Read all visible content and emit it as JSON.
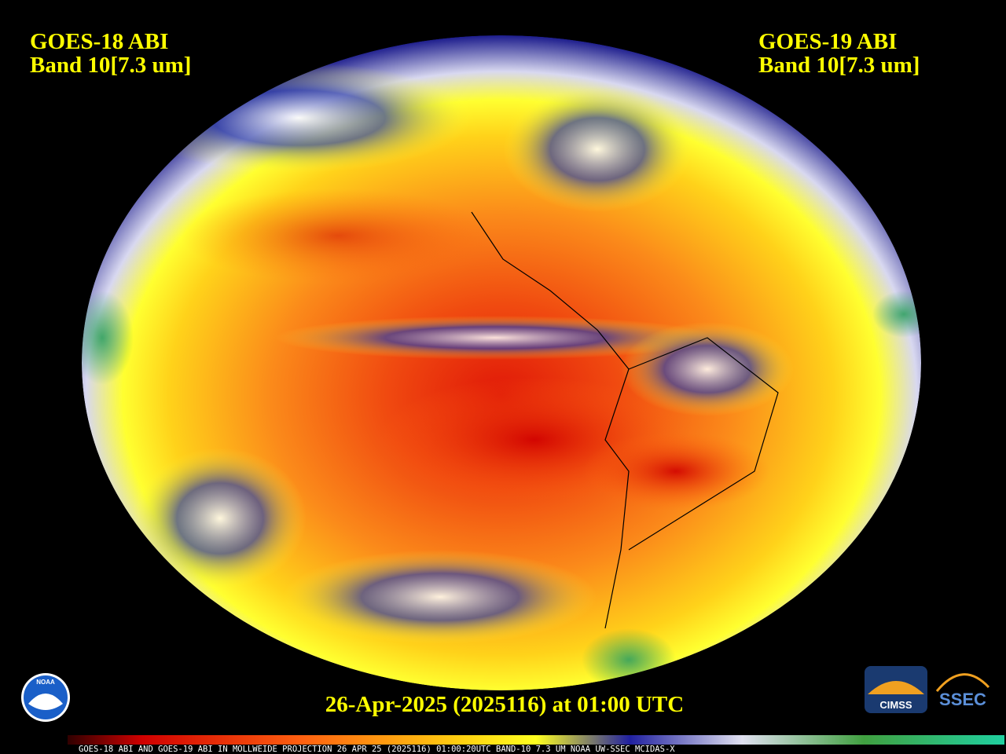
{
  "header": {
    "left": {
      "line1": "GOES-18 ABI",
      "line2": "Band 10[7.3 um]"
    },
    "right": {
      "line1": "GOES-19 ABI",
      "line2": "Band 10[7.3 um]"
    }
  },
  "timestamp": "26-Apr-2025 (2025116) at 01:00 UTC",
  "colorbar_caption": "GOES-18 ABI AND GOES-19 ABI IN MOLLWEIDE PROJECTION 26 APR 25 (2025116) 01:00:20UTC BAND-10 7.3 UM NOAA UW-SSEC MCIDAS-X",
  "logos": {
    "noaa": "NOAA",
    "cimss": "CIMSS",
    "ssec": "SSEC"
  }
}
